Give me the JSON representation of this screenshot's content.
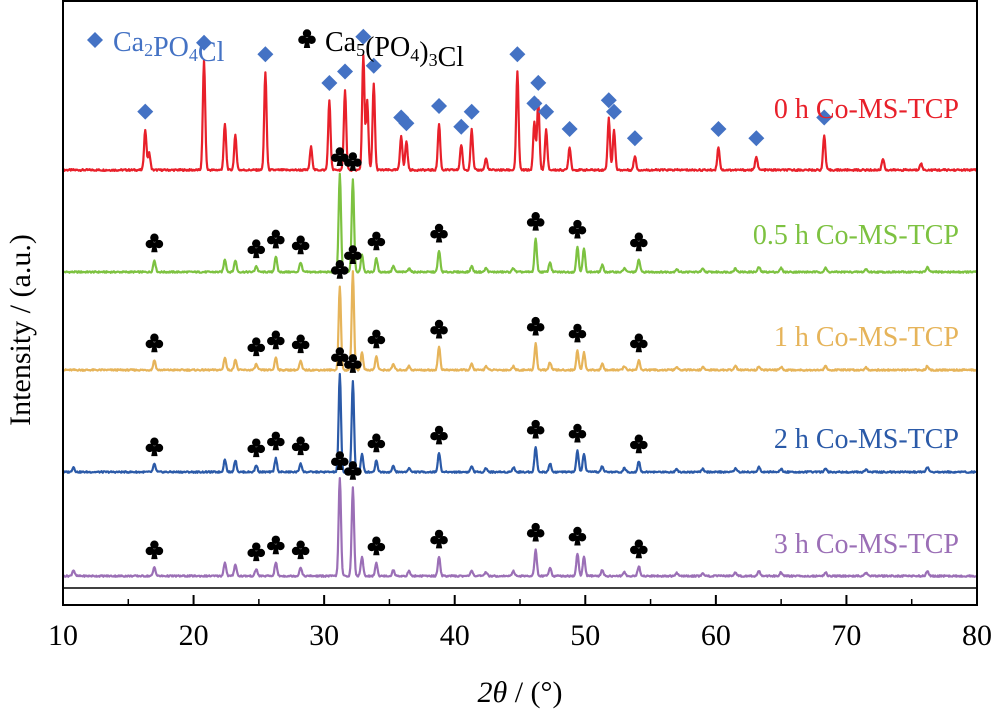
{
  "chart_data": {
    "type": "line",
    "xlabel": "2θ / (°)",
    "xlabel_var": "2θ",
    "xlabel_unit": " / (°)",
    "ylabel": "Intensity / (a.u.)",
    "xlim": [
      10,
      80
    ],
    "x_ticks": [
      10,
      20,
      30,
      40,
      50,
      60,
      70,
      80
    ],
    "x_tick_labels": [
      "10",
      "20",
      "30",
      "40",
      "50",
      "60",
      "70",
      "80"
    ],
    "y_ticks_shown": false,
    "grid": false,
    "legend": {
      "placement": "top-left",
      "entries": [
        {
          "marker": "diamond",
          "name": "Ca2PO4Cl",
          "color": "#4472c4",
          "parts": [
            [
              "Ca",
              ""
            ],
            [
              "2",
              "sub"
            ],
            [
              "PO",
              ""
            ],
            [
              "4",
              "sub"
            ],
            [
              "Cl",
              ""
            ]
          ]
        },
        {
          "marker": "club",
          "name": "Ca5(PO4)3Cl",
          "color": "#000000",
          "parts": [
            [
              "Ca",
              ""
            ],
            [
              "5",
              "sub"
            ],
            [
              "(PO",
              ""
            ],
            [
              "4",
              "sub"
            ],
            [
              ")",
              ""
            ],
            [
              "3",
              "sub"
            ],
            [
              "Cl",
              ""
            ]
          ]
        }
      ]
    },
    "series": [
      {
        "name": "0 h Co-MS-TCP",
        "color": "#e8202a",
        "phase": "Ca2PO4Cl",
        "peaks": [
          [
            16.3,
            0.35
          ],
          [
            16.6,
            0.15
          ],
          [
            20.8,
            0.95
          ],
          [
            22.4,
            0.4
          ],
          [
            23.2,
            0.3
          ],
          [
            25.5,
            0.85
          ],
          [
            29.0,
            0.2
          ],
          [
            30.4,
            0.6
          ],
          [
            31.6,
            0.7
          ],
          [
            33.0,
            1.0
          ],
          [
            33.3,
            0.6
          ],
          [
            33.8,
            0.75
          ],
          [
            35.9,
            0.3
          ],
          [
            36.3,
            0.25
          ],
          [
            38.8,
            0.4
          ],
          [
            40.5,
            0.22
          ],
          [
            41.3,
            0.35
          ],
          [
            42.4,
            0.1
          ],
          [
            44.8,
            0.85
          ],
          [
            46.1,
            0.42
          ],
          [
            46.4,
            0.6
          ],
          [
            47.0,
            0.35
          ],
          [
            48.8,
            0.2
          ],
          [
            51.8,
            0.45
          ],
          [
            52.2,
            0.35
          ],
          [
            53.8,
            0.12
          ],
          [
            60.2,
            0.2
          ],
          [
            63.1,
            0.12
          ],
          [
            68.3,
            0.3
          ],
          [
            72.8,
            0.1
          ],
          [
            75.7,
            0.06
          ]
        ],
        "markers_x": [
          16.3,
          20.8,
          25.5,
          30.4,
          31.6,
          33.0,
          33.8,
          35.9,
          36.3,
          38.8,
          40.5,
          41.3,
          44.8,
          46.1,
          46.4,
          47.0,
          48.8,
          51.8,
          52.2,
          53.8,
          60.2,
          63.1,
          68.3
        ]
      },
      {
        "name": "0.5 h Co-MS-TCP",
        "color": "#7dc241",
        "phase": "Ca5(PO4)3Cl",
        "peaks": [
          [
            17.0,
            0.12
          ],
          [
            22.4,
            0.13
          ],
          [
            23.2,
            0.12
          ],
          [
            24.8,
            0.06
          ],
          [
            26.3,
            0.16
          ],
          [
            28.2,
            0.1
          ],
          [
            31.2,
            1.0
          ],
          [
            32.2,
            0.95
          ],
          [
            32.9,
            0.18
          ],
          [
            34.0,
            0.14
          ],
          [
            35.3,
            0.06
          ],
          [
            36.5,
            0.04
          ],
          [
            38.8,
            0.22
          ],
          [
            41.3,
            0.06
          ],
          [
            42.4,
            0.04
          ],
          [
            44.5,
            0.04
          ],
          [
            46.2,
            0.34
          ],
          [
            47.3,
            0.1
          ],
          [
            49.4,
            0.26
          ],
          [
            49.9,
            0.24
          ],
          [
            51.3,
            0.07
          ],
          [
            53.0,
            0.04
          ],
          [
            54.1,
            0.13
          ],
          [
            57.0,
            0.03
          ],
          [
            59.0,
            0.03
          ],
          [
            61.5,
            0.04
          ],
          [
            63.3,
            0.05
          ],
          [
            65.0,
            0.04
          ],
          [
            68.4,
            0.04
          ],
          [
            71.5,
            0.03
          ],
          [
            76.2,
            0.05
          ]
        ],
        "markers_x": [
          17.0,
          24.8,
          26.3,
          28.2,
          31.2,
          32.2,
          34.0,
          38.8,
          46.2,
          49.4,
          54.1
        ]
      },
      {
        "name": "1 h Co-MS-TCP",
        "color": "#e6b45a",
        "phase": "Ca5(PO4)3Cl",
        "peaks": [
          [
            17.0,
            0.1
          ],
          [
            22.4,
            0.13
          ],
          [
            23.2,
            0.11
          ],
          [
            24.8,
            0.06
          ],
          [
            26.3,
            0.13
          ],
          [
            28.2,
            0.09
          ],
          [
            31.2,
            0.85
          ],
          [
            32.2,
            1.0
          ],
          [
            32.9,
            0.18
          ],
          [
            34.0,
            0.14
          ],
          [
            35.3,
            0.06
          ],
          [
            36.5,
            0.04
          ],
          [
            38.8,
            0.24
          ],
          [
            41.3,
            0.06
          ],
          [
            42.4,
            0.04
          ],
          [
            44.5,
            0.04
          ],
          [
            46.2,
            0.27
          ],
          [
            47.3,
            0.08
          ],
          [
            49.4,
            0.2
          ],
          [
            49.9,
            0.18
          ],
          [
            51.3,
            0.06
          ],
          [
            53.0,
            0.04
          ],
          [
            54.1,
            0.1
          ],
          [
            57.0,
            0.03
          ],
          [
            59.0,
            0.03
          ],
          [
            61.5,
            0.04
          ],
          [
            63.3,
            0.04
          ],
          [
            65.0,
            0.03
          ],
          [
            68.4,
            0.04
          ],
          [
            71.5,
            0.03
          ],
          [
            76.2,
            0.04
          ]
        ],
        "markers_x": [
          17.0,
          24.8,
          26.3,
          28.2,
          31.2,
          32.2,
          34.0,
          38.8,
          46.2,
          49.4,
          54.1
        ]
      },
      {
        "name": "2 h Co-MS-TCP",
        "color": "#2b5aa8",
        "phase": "Ca5(PO4)3Cl",
        "peaks": [
          [
            10.8,
            0.05
          ],
          [
            17.0,
            0.08
          ],
          [
            22.4,
            0.13
          ],
          [
            23.2,
            0.12
          ],
          [
            24.8,
            0.07
          ],
          [
            26.3,
            0.14
          ],
          [
            28.2,
            0.09
          ],
          [
            31.2,
            1.0
          ],
          [
            32.2,
            0.93
          ],
          [
            32.9,
            0.18
          ],
          [
            34.0,
            0.12
          ],
          [
            35.3,
            0.06
          ],
          [
            36.5,
            0.04
          ],
          [
            38.8,
            0.2
          ],
          [
            41.3,
            0.06
          ],
          [
            42.4,
            0.04
          ],
          [
            44.5,
            0.05
          ],
          [
            46.2,
            0.26
          ],
          [
            47.3,
            0.09
          ],
          [
            49.4,
            0.22
          ],
          [
            49.9,
            0.19
          ],
          [
            51.3,
            0.06
          ],
          [
            53.0,
            0.04
          ],
          [
            54.1,
            0.11
          ],
          [
            57.0,
            0.03
          ],
          [
            59.0,
            0.03
          ],
          [
            61.5,
            0.04
          ],
          [
            63.3,
            0.05
          ],
          [
            65.0,
            0.03
          ],
          [
            68.4,
            0.04
          ],
          [
            71.5,
            0.03
          ],
          [
            76.2,
            0.05
          ]
        ],
        "markers_x": [
          17.0,
          24.8,
          26.3,
          28.2,
          31.2,
          32.2,
          34.0,
          38.8,
          46.2,
          49.4,
          54.1
        ]
      },
      {
        "name": "3 h Co-MS-TCP",
        "color": "#9b6fb6",
        "phase": "Ca5(PO4)3Cl",
        "peaks": [
          [
            10.8,
            0.06
          ],
          [
            17.0,
            0.09
          ],
          [
            22.4,
            0.14
          ],
          [
            23.2,
            0.12
          ],
          [
            24.8,
            0.07
          ],
          [
            26.3,
            0.14
          ],
          [
            28.2,
            0.09
          ],
          [
            31.2,
            1.0
          ],
          [
            32.2,
            0.9
          ],
          [
            32.9,
            0.2
          ],
          [
            34.0,
            0.13
          ],
          [
            35.3,
            0.06
          ],
          [
            36.5,
            0.05
          ],
          [
            38.8,
            0.2
          ],
          [
            41.3,
            0.06
          ],
          [
            42.4,
            0.04
          ],
          [
            44.5,
            0.05
          ],
          [
            46.2,
            0.27
          ],
          [
            47.3,
            0.09
          ],
          [
            49.4,
            0.23
          ],
          [
            49.9,
            0.2
          ],
          [
            51.3,
            0.06
          ],
          [
            53.0,
            0.04
          ],
          [
            54.1,
            0.1
          ],
          [
            57.0,
            0.03
          ],
          [
            59.0,
            0.03
          ],
          [
            61.5,
            0.04
          ],
          [
            63.3,
            0.05
          ],
          [
            65.0,
            0.04
          ],
          [
            68.4,
            0.04
          ],
          [
            71.5,
            0.03
          ],
          [
            76.2,
            0.05
          ]
        ],
        "markers_x": [
          17.0,
          24.8,
          26.3,
          28.2,
          31.2,
          32.2,
          34.0,
          38.8,
          46.2,
          49.4,
          54.1
        ]
      }
    ]
  }
}
